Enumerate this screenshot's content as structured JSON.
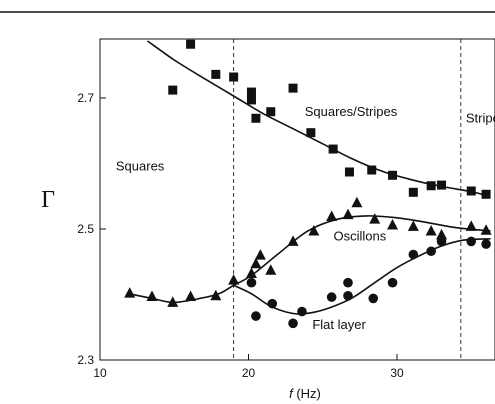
{
  "chart_data": {
    "type": "scatter",
    "xlabel_symbol": "f",
    "xlabel_unit": "(Hz)",
    "ylabel": "Γ",
    "xlim": [
      10,
      36.6
    ],
    "ylim": [
      2.3,
      2.79
    ],
    "x_ticks": [
      10,
      20,
      30
    ],
    "y_ticks": [
      2.3,
      2.5,
      2.7
    ],
    "x_tick_labels": [
      "10",
      "20",
      "30"
    ],
    "y_tick_labels": [
      "2.3",
      "2.5",
      "2.7"
    ],
    "boundaries_x": [
      19.0,
      34.3
    ],
    "region_labels": [
      {
        "text": "Squares",
        "x": 12.7,
        "y": 2.597
      },
      {
        "text": "Squares/Stripes",
        "x": 26.9,
        "y": 2.68
      },
      {
        "text": "Stripes",
        "x": 36.0,
        "y": 2.67
      },
      {
        "text": "Oscillons",
        "x": 27.5,
        "y": 2.49
      },
      {
        "text": "Flat layer",
        "x": 26.1,
        "y": 2.355
      }
    ],
    "series": [
      {
        "marker": "square",
        "color": "#111111",
        "points": [
          [
            14.9,
            2.712
          ],
          [
            16.1,
            2.782
          ],
          [
            17.8,
            2.736
          ],
          [
            19.0,
            2.732
          ],
          [
            20.2,
            2.709
          ],
          [
            20.2,
            2.697
          ],
          [
            20.5,
            2.669
          ],
          [
            21.5,
            2.679
          ],
          [
            23.0,
            2.715
          ],
          [
            24.2,
            2.647
          ],
          [
            25.7,
            2.622
          ],
          [
            26.8,
            2.587
          ],
          [
            28.3,
            2.59
          ],
          [
            29.7,
            2.582
          ],
          [
            31.1,
            2.556
          ],
          [
            32.3,
            2.566
          ],
          [
            33.0,
            2.567
          ],
          [
            35.0,
            2.558
          ],
          [
            36.0,
            2.553
          ]
        ]
      },
      {
        "marker": "triangle",
        "color": "#111111",
        "points": [
          [
            12.0,
            2.402
          ],
          [
            13.5,
            2.397
          ],
          [
            14.9,
            2.388
          ],
          [
            16.1,
            2.397
          ],
          [
            17.8,
            2.398
          ],
          [
            19.0,
            2.422
          ],
          [
            20.2,
            2.432
          ],
          [
            20.5,
            2.447
          ],
          [
            20.8,
            2.46
          ],
          [
            21.5,
            2.437
          ],
          [
            23.0,
            2.481
          ],
          [
            24.4,
            2.497
          ],
          [
            25.6,
            2.519
          ],
          [
            26.7,
            2.522
          ],
          [
            27.3,
            2.54
          ],
          [
            28.5,
            2.515
          ],
          [
            29.7,
            2.506
          ],
          [
            31.1,
            2.504
          ],
          [
            32.3,
            2.497
          ],
          [
            33.0,
            2.491
          ],
          [
            35.0,
            2.504
          ],
          [
            36.0,
            2.498
          ]
        ]
      },
      {
        "marker": "circle",
        "color": "#111111",
        "points": [
          [
            20.2,
            2.418
          ],
          [
            20.5,
            2.367
          ],
          [
            21.6,
            2.386
          ],
          [
            23.0,
            2.356
          ],
          [
            23.6,
            2.374
          ],
          [
            25.6,
            2.396
          ],
          [
            26.7,
            2.398
          ],
          [
            26.7,
            2.418
          ],
          [
            28.4,
            2.394
          ],
          [
            29.7,
            2.418
          ],
          [
            31.1,
            2.461
          ],
          [
            32.3,
            2.466
          ],
          [
            33.0,
            2.481
          ],
          [
            35.0,
            2.481
          ],
          [
            36.0,
            2.477
          ]
        ]
      }
    ],
    "fit_curves": [
      {
        "name": "upper",
        "points": [
          [
            13.2,
            2.787
          ],
          [
            15,
            2.758
          ],
          [
            17,
            2.73
          ],
          [
            19,
            2.703
          ],
          [
            21,
            2.676
          ],
          [
            23,
            2.653
          ],
          [
            25,
            2.63
          ],
          [
            27,
            2.607
          ],
          [
            29,
            2.588
          ],
          [
            31,
            2.575
          ],
          [
            33,
            2.565
          ],
          [
            35,
            2.557
          ],
          [
            36.2,
            2.55
          ]
        ]
      },
      {
        "name": "middle",
        "points": [
          [
            12,
            2.401
          ],
          [
            13.5,
            2.394
          ],
          [
            14.9,
            2.388
          ],
          [
            16.5,
            2.393
          ],
          [
            18,
            2.401
          ],
          [
            19,
            2.414
          ],
          [
            20.2,
            2.429
          ],
          [
            22,
            2.462
          ],
          [
            24,
            2.497
          ],
          [
            26,
            2.515
          ],
          [
            28,
            2.52
          ],
          [
            30,
            2.517
          ],
          [
            32,
            2.51
          ],
          [
            34,
            2.502
          ],
          [
            36.3,
            2.497
          ]
        ]
      },
      {
        "name": "lower",
        "points": [
          [
            19,
            2.414
          ],
          [
            20.2,
            2.401
          ],
          [
            21.5,
            2.382
          ],
          [
            23,
            2.371
          ],
          [
            24.2,
            2.372
          ],
          [
            25.5,
            2.38
          ],
          [
            27,
            2.395
          ],
          [
            28.5,
            2.418
          ],
          [
            30,
            2.441
          ],
          [
            31.5,
            2.459
          ],
          [
            33,
            2.474
          ],
          [
            34.5,
            2.483
          ],
          [
            36.3,
            2.485
          ]
        ]
      }
    ]
  }
}
